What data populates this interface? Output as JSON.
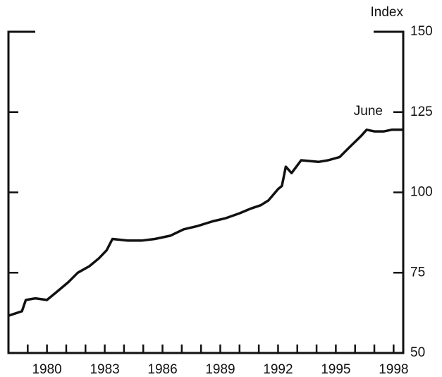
{
  "chart_data": {
    "type": "line",
    "y_axis_label": "Index",
    "annotation": "June",
    "x": [
      1978.0,
      1978.7,
      1978.9,
      1979.4,
      1980.0,
      1980.5,
      1981.1,
      1981.6,
      1982.2,
      1982.7,
      1983.1,
      1983.4,
      1984.2,
      1984.9,
      1985.6,
      1986.4,
      1987.1,
      1987.8,
      1988.6,
      1989.3,
      1990.0,
      1990.6,
      1991.1,
      1991.5,
      1992.0,
      1992.2,
      1992.4,
      1992.7,
      1993.2,
      1994.1,
      1994.6,
      1995.2,
      1995.7,
      1996.3,
      1996.6,
      1997.0,
      1997.5,
      1997.9,
      1998.45
    ],
    "series": [
      {
        "color": "#111111",
        "values": [
          61.6,
          63,
          66.5,
          67,
          66.5,
          69,
          72,
          75,
          77,
          79.5,
          82,
          85.5,
          85,
          85,
          85.5,
          86.5,
          88.5,
          89.5,
          91,
          92,
          93.5,
          95,
          96,
          97.5,
          101,
          102,
          108,
          106,
          110,
          109.5,
          110,
          111,
          114,
          117.5,
          119.5,
          119,
          119,
          119.5,
          119.5
        ]
      }
    ],
    "xlim": [
      1978,
      1998.5
    ],
    "xticks": [
      1980,
      1983,
      1986,
      1989,
      1992,
      1995,
      1998
    ],
    "xminor_ticks": [
      1979,
      1980,
      1981,
      1982,
      1983,
      1984,
      1985,
      1986,
      1987,
      1988,
      1989,
      1990,
      1991,
      1992,
      1993,
      1994,
      1995,
      1996,
      1997,
      1998
    ],
    "ylim": [
      50,
      150
    ],
    "yticks": [
      50,
      75,
      100,
      125,
      150
    ]
  }
}
